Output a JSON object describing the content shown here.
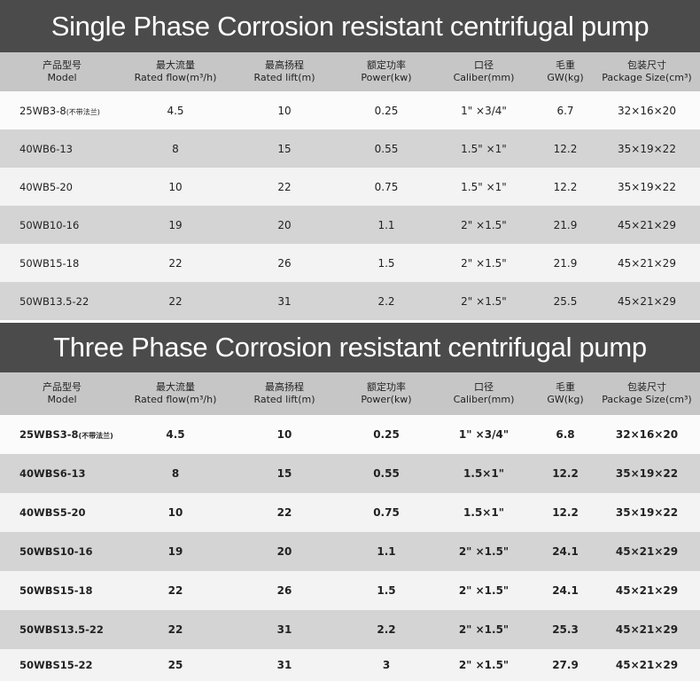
{
  "single_phase": {
    "title": "Single Phase Corrosion resistant centrifugal pump",
    "headers": [
      {
        "cn": "产品型号",
        "en": "Model"
      },
      {
        "cn": "最大流量",
        "en": "Rated flow(m³/h)"
      },
      {
        "cn": "最高扬程",
        "en": "Rated lift(m)"
      },
      {
        "cn": "额定功率",
        "en": "Power(kw)"
      },
      {
        "cn": "口径",
        "en": "Caliber(mm)"
      },
      {
        "cn": "毛重",
        "en": "GW(kg)"
      },
      {
        "cn": "包装尺寸",
        "en": "Package Size(cm³)"
      }
    ],
    "rows": [
      {
        "model": "25WB3-8",
        "note": "(不带法兰)",
        "flow": "4.5",
        "lift": "10",
        "power": "0.25",
        "caliber": "1\"  ×3/4\"",
        "gw": "6.7",
        "size": "32×16×20"
      },
      {
        "model": "40WB6-13",
        "note": "",
        "flow": "8",
        "lift": "15",
        "power": "0.55",
        "caliber": "1.5\"  ×1\"",
        "gw": "12.2",
        "size": "35×19×22"
      },
      {
        "model": "40WB5-20",
        "note": "",
        "flow": "10",
        "lift": "22",
        "power": "0.75",
        "caliber": "1.5\"  ×1\"",
        "gw": "12.2",
        "size": "35×19×22"
      },
      {
        "model": "50WB10-16",
        "note": "",
        "flow": "19",
        "lift": "20",
        "power": "1.1",
        "caliber": "2\"  ×1.5\"",
        "gw": "21.9",
        "size": "45×21×29"
      },
      {
        "model": "50WB15-18",
        "note": "",
        "flow": "22",
        "lift": "26",
        "power": "1.5",
        "caliber": "2\"  ×1.5\"",
        "gw": "21.9",
        "size": "45×21×29"
      },
      {
        "model": "50WB13.5-22",
        "note": "",
        "flow": "22",
        "lift": "31",
        "power": "2.2",
        "caliber": "2\"  ×1.5\"",
        "gw": "25.5",
        "size": "45×21×29"
      }
    ]
  },
  "three_phase": {
    "title": "Three Phase Corrosion resistant centrifugal pump",
    "headers": [
      {
        "cn": "产品型号",
        "en": "Model"
      },
      {
        "cn": "最大流量",
        "en": "Rated flow(m³/h)"
      },
      {
        "cn": "最高扬程",
        "en": "Rated lift(m)"
      },
      {
        "cn": "额定功率",
        "en": "Power(kw)"
      },
      {
        "cn": "口径",
        "en": "Caliber(mm)"
      },
      {
        "cn": "毛重",
        "en": "GW(kg)"
      },
      {
        "cn": "包装尺寸",
        "en": "Package Size(cm³)"
      }
    ],
    "rows": [
      {
        "model": "25WBS3-8",
        "note": "(不带法兰)",
        "flow": "4.5",
        "lift": "10",
        "power": "0.25",
        "caliber": "1\"  ×3/4\"",
        "gw": "6.8",
        "size": "32×16×20"
      },
      {
        "model": "40WBS6-13",
        "note": "",
        "flow": "8",
        "lift": "15",
        "power": "0.55",
        "caliber": "1.5×1\"",
        "gw": "12.2",
        "size": "35×19×22"
      },
      {
        "model": "40WBS5-20",
        "note": "",
        "flow": "10",
        "lift": "22",
        "power": "0.75",
        "caliber": "1.5×1\"",
        "gw": "12.2",
        "size": "35×19×22"
      },
      {
        "model": "50WBS10-16",
        "note": "",
        "flow": "19",
        "lift": "20",
        "power": "1.1",
        "caliber": "2\"  ×1.5\"",
        "gw": "24.1",
        "size": "45×21×29"
      },
      {
        "model": "50WBS15-18",
        "note": "",
        "flow": "22",
        "lift": "26",
        "power": "1.5",
        "caliber": "2\"  ×1.5\"",
        "gw": "24.1",
        "size": "45×21×29"
      },
      {
        "model": "50WBS13.5-22",
        "note": "",
        "flow": "22",
        "lift": "31",
        "power": "2.2",
        "caliber": "2\"  ×1.5\"",
        "gw": "25.3",
        "size": "45×21×29"
      },
      {
        "model": "50WBS15-22",
        "note": "",
        "flow": "25",
        "lift": "31",
        "power": "3",
        "caliber": "2\"  ×1.5\"",
        "gw": "27.9",
        "size": "45×21×29"
      }
    ]
  }
}
